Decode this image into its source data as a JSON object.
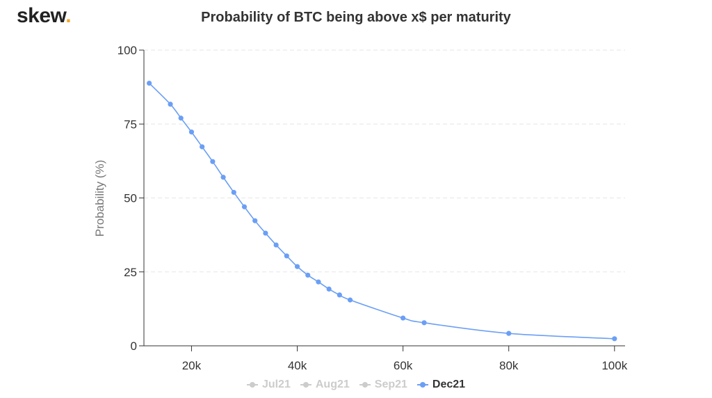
{
  "brand": {
    "name": "skew",
    "dot": "."
  },
  "chart_data": {
    "type": "line",
    "title": "Probability of BTC being above x$ per maturity",
    "xlabel": "",
    "ylabel": "Probability (%)",
    "xlim": [
      11000,
      102000
    ],
    "ylim": [
      0,
      100
    ],
    "xticks": [
      20000,
      40000,
      60000,
      80000,
      100000
    ],
    "xtick_labels": [
      "20k",
      "40k",
      "60k",
      "80k",
      "100k"
    ],
    "yticks": [
      0,
      25,
      50,
      75,
      100
    ],
    "ytick_labels": [
      "0",
      "25",
      "50",
      "75",
      "100"
    ],
    "grid": true,
    "legend": "bottom-center",
    "series": [
      {
        "name": "Jul21",
        "visible": false,
        "color": "#cccccc",
        "x": [],
        "y": []
      },
      {
        "name": "Aug21",
        "visible": false,
        "color": "#cccccc",
        "x": [],
        "y": []
      },
      {
        "name": "Sep21",
        "visible": false,
        "color": "#cccccc",
        "x": [],
        "y": []
      },
      {
        "name": "Dec21",
        "visible": true,
        "color": "#6b9ff5",
        "x": [
          12000,
          16000,
          18000,
          20000,
          22000,
          24000,
          26000,
          28000,
          30000,
          32000,
          34000,
          36000,
          38000,
          40000,
          42000,
          44000,
          46000,
          48000,
          50000,
          60000,
          64000,
          80000,
          100000
        ],
        "y": [
          88.8,
          81.7,
          77.0,
          72.3,
          67.3,
          62.3,
          57.0,
          51.9,
          47.0,
          42.3,
          38.1,
          34.1,
          30.4,
          26.8,
          23.9,
          21.6,
          19.2,
          17.2,
          15.5,
          9.4,
          7.8,
          4.2,
          2.4
        ]
      }
    ]
  }
}
